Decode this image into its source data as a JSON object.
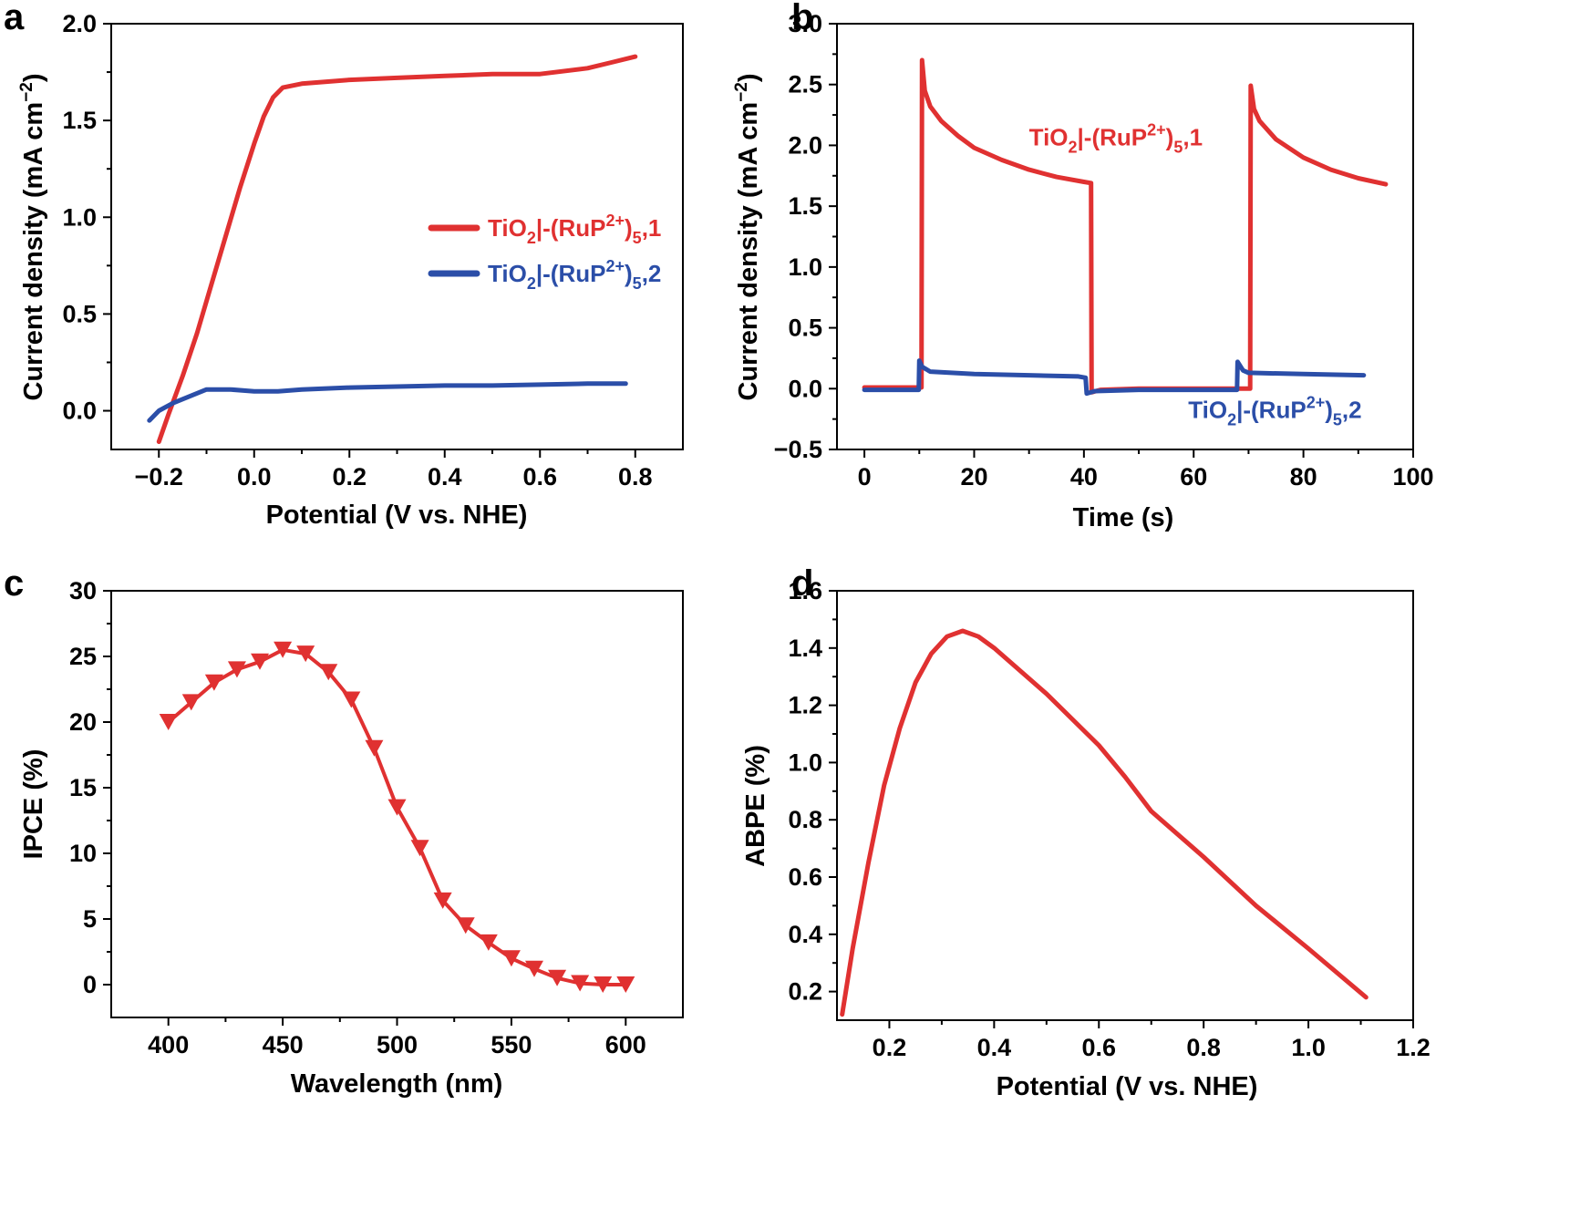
{
  "colors": {
    "red": "#e03131",
    "blue": "#2b4ea8",
    "axis": "#000000"
  },
  "chart_data": [
    {
      "id": "a",
      "panel": "a",
      "type": "line",
      "xlabel": "Potential (V vs. NHE)",
      "ylabel_parts": {
        "main": "Current density (mA cm",
        "sup": "−2",
        "end": ")"
      },
      "xlim": [
        -0.3,
        0.9
      ],
      "ylim": [
        -0.2,
        2.0
      ],
      "xticks": [
        -0.2,
        0.0,
        0.2,
        0.4,
        0.6,
        0.8
      ],
      "xtick_labels": [
        "−0.2",
        "0.0",
        "0.2",
        "0.4",
        "0.6",
        "0.8"
      ],
      "yticks": [
        0.0,
        0.5,
        1.0,
        1.5,
        2.0
      ],
      "ytick_labels": [
        "0.0",
        "0.5",
        "1.0",
        "1.5",
        "2.0"
      ],
      "legend": "right",
      "series": [
        {
          "name": "TiO2|-(RuP2+)5,1",
          "label_parts": {
            "a": "TiO",
            "b": "2",
            "c": "|-(RuP",
            "d": "2+",
            "e": ")",
            "f": "5",
            "g": ",1"
          },
          "color": "#e03131",
          "points": [
            [
              -0.2,
              -0.16
            ],
            [
              -0.18,
              -0.02
            ],
            [
              -0.15,
              0.18
            ],
            [
              -0.12,
              0.4
            ],
            [
              -0.09,
              0.65
            ],
            [
              -0.06,
              0.9
            ],
            [
              -0.03,
              1.15
            ],
            [
              0.0,
              1.38
            ],
            [
              0.02,
              1.52
            ],
            [
              0.04,
              1.62
            ],
            [
              0.06,
              1.67
            ],
            [
              0.1,
              1.69
            ],
            [
              0.2,
              1.71
            ],
            [
              0.3,
              1.72
            ],
            [
              0.4,
              1.73
            ],
            [
              0.5,
              1.74
            ],
            [
              0.6,
              1.74
            ],
            [
              0.7,
              1.77
            ],
            [
              0.75,
              1.8
            ],
            [
              0.8,
              1.83
            ]
          ]
        },
        {
          "name": "TiO2|-(RuP2+)5,2",
          "label_parts": {
            "a": "TiO",
            "b": "2",
            "c": "|-(RuP",
            "d": "2+",
            "e": ")",
            "f": "5",
            "g": ",2"
          },
          "color": "#2b4ea8",
          "points": [
            [
              -0.22,
              -0.05
            ],
            [
              -0.2,
              0.0
            ],
            [
              -0.17,
              0.04
            ],
            [
              -0.13,
              0.08
            ],
            [
              -0.1,
              0.11
            ],
            [
              -0.08,
              0.11
            ],
            [
              -0.05,
              0.11
            ],
            [
              0.0,
              0.1
            ],
            [
              0.05,
              0.1
            ],
            [
              0.1,
              0.11
            ],
            [
              0.2,
              0.12
            ],
            [
              0.3,
              0.125
            ],
            [
              0.4,
              0.13
            ],
            [
              0.5,
              0.13
            ],
            [
              0.6,
              0.135
            ],
            [
              0.7,
              0.14
            ],
            [
              0.78,
              0.14
            ]
          ]
        }
      ]
    },
    {
      "id": "b",
      "panel": "b",
      "type": "line",
      "xlabel": "Time (s)",
      "ylabel_parts": {
        "main": "Current density (mA cm",
        "sup": "−2",
        "end": ")"
      },
      "xlim": [
        -5,
        100
      ],
      "ylim": [
        -0.5,
        3.0
      ],
      "xticks": [
        0,
        20,
        40,
        60,
        80,
        100
      ],
      "xtick_labels": [
        "0",
        "20",
        "40",
        "60",
        "80",
        "100"
      ],
      "yticks": [
        -0.5,
        0.0,
        0.5,
        1.0,
        1.5,
        2.0,
        2.5,
        3.0
      ],
      "ytick_labels": [
        "−0.5",
        "0.0",
        "0.5",
        "1.0",
        "1.5",
        "2.0",
        "2.5",
        "3.0"
      ],
      "legend": "inline",
      "series": [
        {
          "name": "TiO2|-(RuP2+)5,1",
          "label_parts": {
            "a": "TiO",
            "b": "2",
            "c": "|-(RuP",
            "d": "2+",
            "e": ")",
            "f": "5",
            "g": ",1"
          },
          "color": "#e03131",
          "label_at": [
            30,
            2.0
          ],
          "points": [
            [
              0,
              0.01
            ],
            [
              10.4,
              0.01
            ],
            [
              10.5,
              2.7
            ],
            [
              11,
              2.45
            ],
            [
              12,
              2.32
            ],
            [
              14,
              2.2
            ],
            [
              17,
              2.08
            ],
            [
              20,
              1.98
            ],
            [
              25,
              1.88
            ],
            [
              30,
              1.8
            ],
            [
              35,
              1.74
            ],
            [
              40,
              1.7
            ],
            [
              41.3,
              1.69
            ],
            [
              41.4,
              -0.03
            ],
            [
              43,
              -0.01
            ],
            [
              50,
              0.0
            ],
            [
              60,
              0.0
            ],
            [
              70.3,
              0.0
            ],
            [
              70.4,
              2.49
            ],
            [
              71,
              2.3
            ],
            [
              72,
              2.2
            ],
            [
              75,
              2.05
            ],
            [
              80,
              1.9
            ],
            [
              85,
              1.8
            ],
            [
              90,
              1.73
            ],
            [
              95,
              1.68
            ]
          ]
        },
        {
          "name": "TiO2|-(RuP2+)5,2",
          "label_parts": {
            "a": "TiO",
            "b": "2",
            "c": "|-(RuP",
            "d": "2+",
            "e": ")",
            "f": "5",
            "g": ",2"
          },
          "color": "#2b4ea8",
          "label_at": [
            59,
            -0.24
          ],
          "points": [
            [
              0,
              -0.01
            ],
            [
              9.9,
              -0.01
            ],
            [
              10,
              0.23
            ],
            [
              10.5,
              0.18
            ],
            [
              12,
              0.14
            ],
            [
              20,
              0.12
            ],
            [
              30,
              0.11
            ],
            [
              39,
              0.1
            ],
            [
              40.3,
              0.09
            ],
            [
              40.5,
              -0.04
            ],
            [
              42,
              -0.02
            ],
            [
              50,
              -0.01
            ],
            [
              67.9,
              -0.01
            ],
            [
              68,
              0.22
            ],
            [
              69,
              0.15
            ],
            [
              70,
              0.13
            ],
            [
              80,
              0.12
            ],
            [
              91,
              0.11
            ]
          ]
        }
      ]
    },
    {
      "id": "c",
      "panel": "c",
      "type": "line",
      "xlabel": "Wavelength (nm)",
      "ylabel": "IPCE (%)",
      "xlim": [
        375,
        625
      ],
      "ylim": [
        -2.5,
        30
      ],
      "xticks": [
        400,
        450,
        500,
        550,
        600
      ],
      "xtick_labels": [
        "400",
        "450",
        "500",
        "550",
        "600"
      ],
      "yticks": [
        0,
        5,
        10,
        15,
        20,
        25,
        30
      ],
      "ytick_labels": [
        "0",
        "5",
        "10",
        "15",
        "20",
        "25",
        "30"
      ],
      "marker": "triangle-down",
      "series": [
        {
          "name": "IPCE",
          "color": "#e03131",
          "x": [
            400,
            410,
            420,
            430,
            440,
            450,
            460,
            470,
            480,
            490,
            500,
            510,
            520,
            530,
            540,
            550,
            560,
            570,
            580,
            590,
            600
          ],
          "values": [
            20.0,
            21.5,
            23.0,
            24.0,
            24.6,
            25.5,
            25.2,
            23.8,
            21.7,
            18.0,
            13.5,
            10.4,
            6.4,
            4.5,
            3.2,
            2.0,
            1.2,
            0.5,
            0.1,
            0.0,
            0.0
          ]
        }
      ]
    },
    {
      "id": "d",
      "panel": "d",
      "type": "line",
      "xlabel": "Potential (V vs. NHE)",
      "ylabel": "ABPE (%)",
      "xlim": [
        0.1,
        1.2
      ],
      "ylim": [
        0.1,
        1.6
      ],
      "xticks": [
        0.2,
        0.4,
        0.6,
        0.8,
        1.0,
        1.2
      ],
      "xtick_labels": [
        "0.2",
        "0.4",
        "0.6",
        "0.8",
        "1.0",
        "1.2"
      ],
      "yticks": [
        0.2,
        0.4,
        0.6,
        0.8,
        1.0,
        1.2,
        1.4,
        1.6
      ],
      "ytick_labels": [
        "0.2",
        "0.4",
        "0.6",
        "0.8",
        "1.0",
        "1.2",
        "1.4",
        "1.6"
      ],
      "series": [
        {
          "name": "ABPE",
          "color": "#e03131",
          "points": [
            [
              0.11,
              0.12
            ],
            [
              0.13,
              0.35
            ],
            [
              0.16,
              0.65
            ],
            [
              0.19,
              0.92
            ],
            [
              0.22,
              1.12
            ],
            [
              0.25,
              1.28
            ],
            [
              0.28,
              1.38
            ],
            [
              0.31,
              1.44
            ],
            [
              0.34,
              1.46
            ],
            [
              0.37,
              1.44
            ],
            [
              0.4,
              1.4
            ],
            [
              0.5,
              1.24
            ],
            [
              0.6,
              1.06
            ],
            [
              0.65,
              0.95
            ],
            [
              0.7,
              0.83
            ],
            [
              0.8,
              0.67
            ],
            [
              0.9,
              0.5
            ],
            [
              1.0,
              0.35
            ],
            [
              1.11,
              0.18
            ]
          ]
        }
      ]
    }
  ]
}
